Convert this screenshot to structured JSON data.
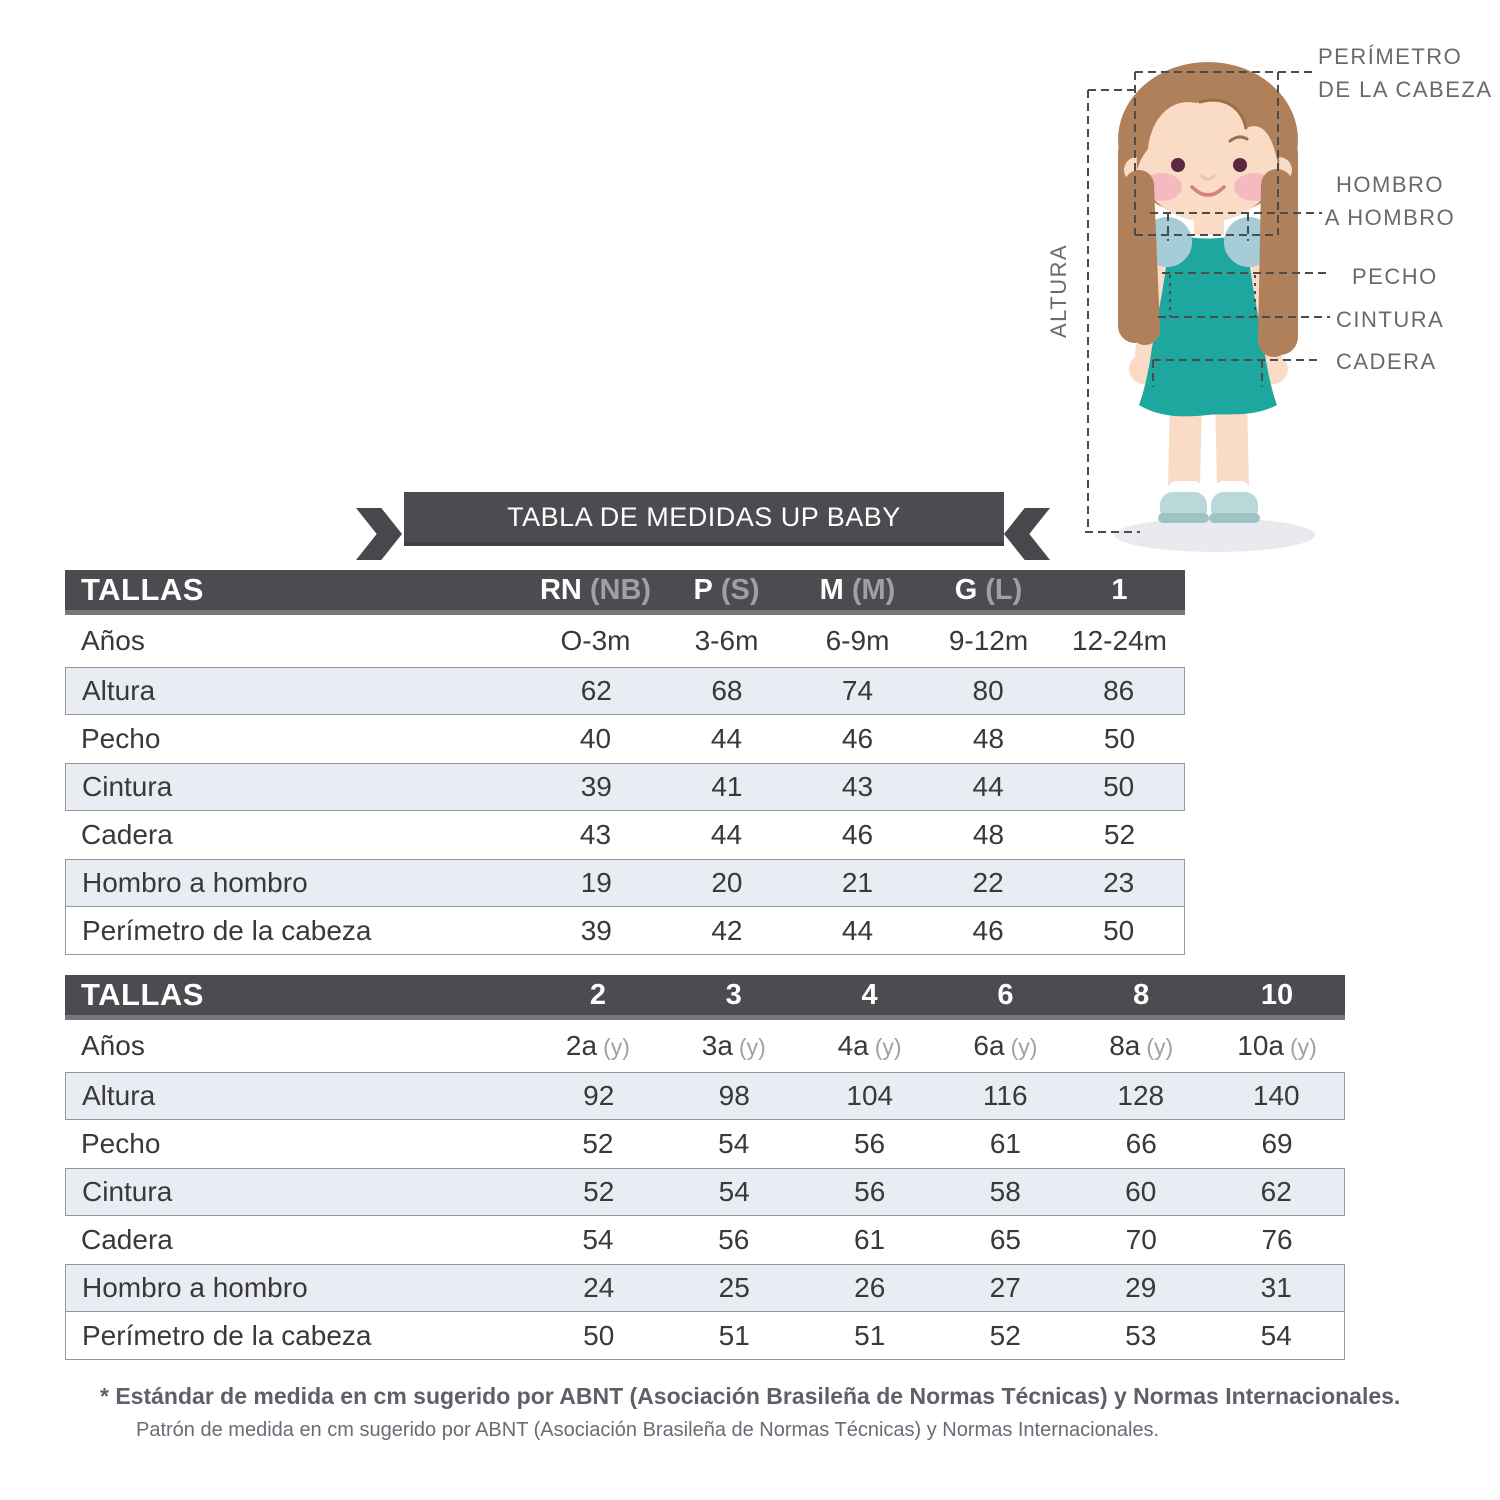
{
  "illustration": {
    "labels": {
      "perimetro_line1": "PERÍMETRO",
      "perimetro_line2": "DE LA CABEZA",
      "hombro_line1": "HOMBRO",
      "hombro_line2": "A HOMBRO",
      "pecho": "PECHO",
      "cintura": "CINTURA",
      "cadera": "CADERA",
      "altura": "ALTURA"
    },
    "colors": {
      "dress": "#1ea79e",
      "hair": "#b0805b",
      "skin": "#fadcc6",
      "cheek": "#f5bac0",
      "shoulder_marker": "#a6cdd7",
      "shoe": "#b9d8da",
      "shadow": "#e8eaef",
      "dashed_line": "#4c4c4c",
      "label_text": "#6a6a6e"
    }
  },
  "banner": {
    "title": "TABLA DE MEDIDAS UP BABY",
    "color": "#4b4b50"
  },
  "tables": [
    {
      "header_label": "TALLAS",
      "size_columns": [
        {
          "main": "RN",
          "sub": "(NB)"
        },
        {
          "main": "P",
          "sub": "(S)"
        },
        {
          "main": "M",
          "sub": "(M)"
        },
        {
          "main": "G",
          "sub": "(L)"
        },
        {
          "main": "1",
          "sub": ""
        }
      ],
      "age_label": "Años",
      "age_values": [
        {
          "main": "O-3m",
          "sub": ""
        },
        {
          "main": "3-6m",
          "sub": ""
        },
        {
          "main": "6-9m",
          "sub": ""
        },
        {
          "main": "9-12m",
          "sub": ""
        },
        {
          "main": "12-24m",
          "sub": ""
        }
      ],
      "rows": [
        {
          "label": "Altura",
          "values": [
            "62",
            "68",
            "74",
            "80",
            "86"
          ]
        },
        {
          "label": "Pecho",
          "values": [
            "40",
            "44",
            "46",
            "48",
            "50"
          ]
        },
        {
          "label": "Cintura",
          "values": [
            "39",
            "41",
            "43",
            "44",
            "50"
          ]
        },
        {
          "label": "Cadera",
          "values": [
            "43",
            "44",
            "46",
            "48",
            "52"
          ]
        },
        {
          "label": "Hombro a hombro",
          "values": [
            "19",
            "20",
            "21",
            "22",
            "23"
          ]
        },
        {
          "label": "Perímetro de la cabeza",
          "values": [
            "39",
            "42",
            "44",
            "46",
            "50"
          ]
        }
      ]
    },
    {
      "header_label": "TALLAS",
      "size_columns": [
        {
          "main": "2",
          "sub": ""
        },
        {
          "main": "3",
          "sub": ""
        },
        {
          "main": "4",
          "sub": ""
        },
        {
          "main": "6",
          "sub": ""
        },
        {
          "main": "8",
          "sub": ""
        },
        {
          "main": "10",
          "sub": ""
        }
      ],
      "age_label": "Años",
      "age_values": [
        {
          "main": "2a",
          "sub": "(y)"
        },
        {
          "main": "3a",
          "sub": "(y)"
        },
        {
          "main": "4a",
          "sub": "(y)"
        },
        {
          "main": "6a",
          "sub": "(y)"
        },
        {
          "main": "8a",
          "sub": "(y)"
        },
        {
          "main": "10a",
          "sub": "(y)"
        }
      ],
      "rows": [
        {
          "label": "Altura",
          "values": [
            "92",
            "98",
            "104",
            "116",
            "128",
            "140"
          ]
        },
        {
          "label": "Pecho",
          "values": [
            "52",
            "54",
            "56",
            "61",
            "66",
            "69"
          ]
        },
        {
          "label": "Cintura",
          "values": [
            "52",
            "54",
            "56",
            "58",
            "60",
            "62"
          ]
        },
        {
          "label": "Cadera",
          "values": [
            "54",
            "56",
            "61",
            "65",
            "70",
            "76"
          ]
        },
        {
          "label": "Hombro a hombro",
          "values": [
            "24",
            "25",
            "26",
            "27",
            "29",
            "31"
          ]
        },
        {
          "label": "Perímetro de la cabeza",
          "values": [
            "50",
            "51",
            "51",
            "52",
            "53",
            "54"
          ]
        }
      ]
    }
  ],
  "footnote": {
    "line1": "* Estándar de medida en cm sugerido por ABNT (Asociación Brasileña de Normas Técnicas) y Normas Internacionales.",
    "line2": "Patrón de medida en cm sugerido por ABNT (Asociación Brasileña de Normas Técnicas) y Normas Internacionales."
  },
  "colors": {
    "table_header_bg": "#4b4b50",
    "row_shade": "#e9edf3",
    "row_border": "#94989e",
    "text_dark": "#39393b",
    "text_gray": "#9fa0a4"
  }
}
